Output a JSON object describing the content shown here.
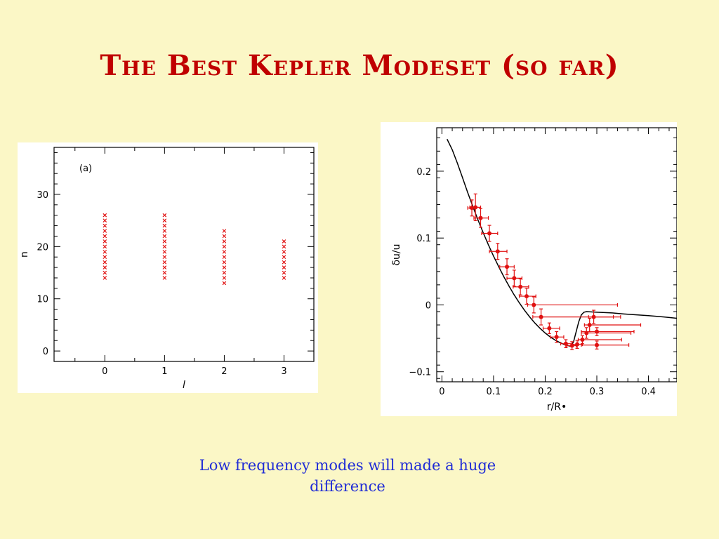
{
  "slide": {
    "title": "The Best Kepler Modeset (so far)",
    "caption": "Low frequency modes will made a huge difference"
  },
  "colors": {
    "background": "#fbf7c6",
    "title": "#c00000",
    "caption": "#1f2bd6",
    "marker": "#e01010",
    "model_line": "#000000"
  },
  "chart_data": [
    {
      "type": "scatter",
      "panel_label": "(a)",
      "xlabel": "l",
      "ylabel": "n",
      "xlim": [
        -0.85,
        3.5
      ],
      "ylim": [
        -2,
        39
      ],
      "xticks": [
        0,
        1,
        2,
        3
      ],
      "yticks": [
        0,
        10,
        20,
        30
      ],
      "marker": "x",
      "series": [
        {
          "l": 0,
          "n": [
            14,
            15,
            16,
            17,
            18,
            19,
            20,
            21,
            22,
            23,
            24,
            25,
            26
          ]
        },
        {
          "l": 1,
          "n": [
            14,
            15,
            16,
            17,
            18,
            19,
            20,
            21,
            22,
            23,
            24,
            25,
            26
          ]
        },
        {
          "l": 2,
          "n": [
            13,
            14,
            15,
            16,
            17,
            18,
            19,
            20,
            21,
            22,
            23
          ]
        },
        {
          "l": 3,
          "n": [
            14,
            15,
            16,
            17,
            18,
            19,
            20,
            21
          ]
        }
      ]
    },
    {
      "type": "scatter",
      "xlabel": "r/R•",
      "ylabel": "δu/u",
      "xlim": [
        -0.01,
        0.455
      ],
      "ylim": [
        -0.115,
        0.265
      ],
      "xticks": [
        0,
        0.1,
        0.2,
        0.3,
        0.4
      ],
      "xtick_labels": [
        "0",
        "0.1",
        "0.2",
        "0.3",
        "0.4"
      ],
      "yticks": [
        -0.1,
        0,
        0.1,
        0.2
      ],
      "ytick_labels": [
        "−0.1",
        "0",
        "0.1",
        "0.2"
      ],
      "model_curve": {
        "x": [
          0.01,
          0.02,
          0.03,
          0.04,
          0.05,
          0.06,
          0.07,
          0.08,
          0.09,
          0.1,
          0.11,
          0.12,
          0.13,
          0.14,
          0.15,
          0.16,
          0.17,
          0.18,
          0.19,
          0.2,
          0.21,
          0.22,
          0.23,
          0.24,
          0.25,
          0.255,
          0.26,
          0.265,
          0.27,
          0.275,
          0.28,
          0.3,
          0.33,
          0.36,
          0.4,
          0.43,
          0.455
        ],
        "y": [
          0.248,
          0.232,
          0.212,
          0.19,
          0.168,
          0.147,
          0.127,
          0.108,
          0.09,
          0.073,
          0.057,
          0.042,
          0.028,
          0.015,
          0.003,
          -0.008,
          -0.018,
          -0.027,
          -0.035,
          -0.042,
          -0.048,
          -0.053,
          -0.057,
          -0.06,
          -0.062,
          -0.055,
          -0.04,
          -0.025,
          -0.015,
          -0.011,
          -0.01,
          -0.011,
          -0.012,
          -0.014,
          -0.016,
          -0.018,
          -0.02
        ]
      },
      "points": [
        {
          "x": 0.058,
          "y": 0.145,
          "xerr": [
            0.05,
            0.064
          ],
          "yerr": 0.012
        },
        {
          "x": 0.065,
          "y": 0.146,
          "xerr": [
            0.054,
            0.075
          ],
          "yerr": 0.02
        },
        {
          "x": 0.075,
          "y": 0.13,
          "xerr": [
            0.062,
            0.09
          ],
          "yerr": 0.014
        },
        {
          "x": 0.092,
          "y": 0.107,
          "xerr": [
            0.077,
            0.108
          ],
          "yerr": 0.012
        },
        {
          "x": 0.108,
          "y": 0.08,
          "xerr": [
            0.092,
            0.126
          ],
          "yerr": 0.012
        },
        {
          "x": 0.126,
          "y": 0.057,
          "xerr": [
            0.112,
            0.14
          ],
          "yerr": 0.012
        },
        {
          "x": 0.14,
          "y": 0.04,
          "xerr": [
            0.126,
            0.155
          ],
          "yerr": 0.012
        },
        {
          "x": 0.152,
          "y": 0.027,
          "xerr": [
            0.138,
            0.168
          ],
          "yerr": 0.012
        },
        {
          "x": 0.164,
          "y": 0.013,
          "xerr": [
            0.15,
            0.182
          ],
          "yerr": 0.012
        },
        {
          "x": 0.178,
          "y": 0.0,
          "xerr": [
            0.166,
            0.34
          ],
          "yerr": 0.012
        },
        {
          "x": 0.192,
          "y": -0.018,
          "xerr": [
            0.176,
            0.332
          ],
          "yerr": 0.012
        },
        {
          "x": 0.208,
          "y": -0.035,
          "xerr": [
            0.196,
            0.228
          ],
          "yerr": 0.008
        },
        {
          "x": 0.222,
          "y": -0.048,
          "xerr": [
            0.21,
            0.236
          ],
          "yerr": 0.008
        },
        {
          "x": 0.24,
          "y": -0.058,
          "xerr": [
            0.23,
            0.252
          ],
          "yerr": 0.006
        },
        {
          "x": 0.252,
          "y": -0.061,
          "xerr": [
            0.242,
            0.26
          ],
          "yerr": 0.006
        },
        {
          "x": 0.262,
          "y": -0.059,
          "xerr": [
            0.252,
            0.272
          ],
          "yerr": 0.006
        },
        {
          "x": 0.272,
          "y": -0.052,
          "xerr": [
            0.264,
            0.348
          ],
          "yerr": 0.006
        },
        {
          "x": 0.28,
          "y": -0.042,
          "xerr": [
            0.27,
            0.366
          ],
          "yerr": 0.008
        },
        {
          "x": 0.286,
          "y": -0.03,
          "xerr": [
            0.276,
            0.385
          ],
          "yerr": 0.01
        },
        {
          "x": 0.294,
          "y": -0.018,
          "xerr": [
            0.284,
            0.346
          ],
          "yerr": 0.01
        },
        {
          "x": 0.3,
          "y": -0.06,
          "xerr": [
            0.27,
            0.362
          ],
          "yerr": 0.006
        },
        {
          "x": 0.3,
          "y": -0.04,
          "xerr": [
            0.27,
            0.372
          ],
          "yerr": 0.006
        }
      ]
    }
  ]
}
